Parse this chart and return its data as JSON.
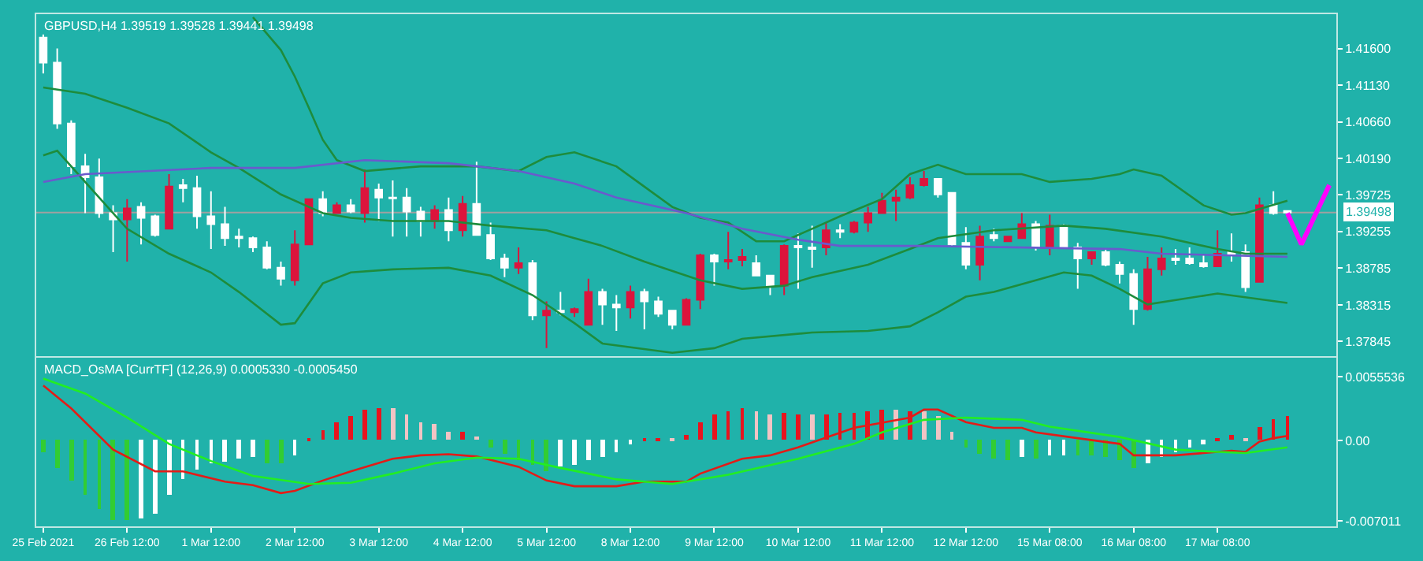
{
  "chart_data": [
    {
      "type": "candlestick",
      "title": "GBPUSD,H4 1.39519 1.39528 1.39441 1.39498",
      "grid": false,
      "tick_labels": "y",
      "categories": [
        null,
        null,
        null,
        null,
        null,
        null,
        null,
        null,
        null,
        null,
        null,
        null,
        null,
        null,
        null,
        null,
        null,
        null,
        null,
        null,
        null,
        null,
        null,
        null,
        null,
        null,
        null,
        null,
        null,
        null,
        null,
        null,
        null,
        null,
        null,
        null,
        null,
        null,
        null,
        null,
        null,
        null,
        null,
        null,
        null,
        null,
        null,
        null,
        null,
        null,
        null,
        null,
        null,
        null,
        null,
        null,
        null,
        null,
        null,
        null,
        null,
        null,
        null,
        null,
        null,
        null,
        null,
        null,
        null,
        null,
        null,
        null,
        null,
        null,
        null,
        null,
        null,
        null,
        null,
        null,
        null,
        null,
        null,
        null,
        null,
        null,
        null,
        null,
        null,
        null,
        null,
        null,
        null
      ],
      "ohlc": [
        [
          1.4174,
          1.4178,
          1.4128,
          1.4142
        ],
        [
          1.4142,
          1.416,
          1.4057,
          1.4064
        ],
        [
          1.4064,
          1.4068,
          1.3999,
          1.4009
        ],
        [
          1.4009,
          1.4025,
          1.3949,
          1.3995
        ],
        [
          1.3995,
          1.4019,
          1.3943,
          1.3949
        ],
        [
          1.3949,
          1.3959,
          1.3899,
          1.3941
        ],
        [
          1.3941,
          1.3967,
          1.3887,
          1.3955
        ],
        [
          1.3957,
          1.3963,
          1.3909,
          1.3943
        ],
        [
          1.3945,
          1.3947,
          1.3919,
          1.3921
        ],
        [
          1.3929,
          1.3999,
          1.3929,
          1.3983
        ],
        [
          1.3985,
          1.3993,
          1.3963,
          1.3981
        ],
        [
          1.3981,
          1.3997,
          1.3929,
          1.3945
        ],
        [
          1.3945,
          1.3977,
          1.3903,
          1.3935
        ],
        [
          1.3935,
          1.3957,
          1.3907,
          1.3917
        ],
        [
          1.3919,
          1.3929,
          1.3905,
          1.3917
        ],
        [
          1.3917,
          1.3919,
          1.3899,
          1.3905
        ],
        [
          1.3905,
          1.3913,
          1.3877,
          1.3879
        ],
        [
          1.3879,
          1.3887,
          1.3856,
          1.3865
        ],
        [
          1.3863,
          1.3927,
          1.3856,
          1.3909
        ],
        [
          1.3909,
          1.3967,
          1.3909,
          1.3967
        ],
        [
          1.3967,
          1.3977,
          1.3945,
          1.3949
        ],
        [
          1.3949,
          1.3963,
          1.3949,
          1.3959
        ],
        [
          1.3959,
          1.3967,
          1.3949,
          1.3951
        ],
        [
          1.3949,
          1.4005,
          1.3937,
          1.3981
        ],
        [
          1.3979,
          1.3987,
          1.3939,
          1.3969
        ],
        [
          1.3969,
          1.3991,
          1.3919,
          1.3968
        ],
        [
          1.3969,
          1.3981,
          1.3919,
          1.3951
        ],
        [
          1.3951,
          1.3957,
          1.3919,
          1.3939
        ],
        [
          1.3939,
          1.3959,
          1.3929,
          1.3953
        ],
        [
          1.3953,
          1.3969,
          1.3913,
          1.3927
        ],
        [
          1.3927,
          1.3971,
          1.3919,
          1.3961
        ],
        [
          1.3961,
          1.4015,
          1.3921,
          1.3921
        ],
        [
          1.3921,
          1.3937,
          1.3889,
          1.3891
        ],
        [
          1.3891,
          1.3897,
          1.3867,
          1.3879
        ],
        [
          1.3879,
          1.3905,
          1.3871,
          1.3885
        ],
        [
          1.3885,
          1.3889,
          1.3812,
          1.3818
        ],
        [
          1.3818,
          1.3836,
          1.3776,
          1.3824
        ],
        [
          1.3824,
          1.3848,
          1.3818,
          1.3822
        ],
        [
          1.3822,
          1.3828,
          1.3816,
          1.3826
        ],
        [
          1.3806,
          1.3865,
          1.3806,
          1.3848
        ],
        [
          1.3848,
          1.3852,
          1.3806,
          1.3832
        ],
        [
          1.3832,
          1.3844,
          1.3798,
          1.3828
        ],
        [
          1.3828,
          1.3856,
          1.3814,
          1.3848
        ],
        [
          1.3848,
          1.3852,
          1.38,
          1.3836
        ],
        [
          1.3836,
          1.3842,
          1.3816,
          1.382
        ],
        [
          1.3824,
          1.3824,
          1.38,
          1.3806
        ],
        [
          1.3806,
          1.384,
          1.3806,
          1.3838
        ],
        [
          1.3838,
          1.3897,
          1.3826,
          1.3895
        ],
        [
          1.3895,
          1.3897,
          1.3856,
          1.3887
        ],
        [
          1.3887,
          1.3925,
          1.3877,
          1.3889
        ],
        [
          1.3889,
          1.3903,
          1.3881,
          1.3893
        ],
        [
          1.3885,
          1.3895,
          1.3869,
          1.3869
        ],
        [
          1.3869,
          1.3869,
          1.3844,
          1.3856
        ],
        [
          1.3856,
          1.3909,
          1.3844,
          1.3907
        ],
        [
          1.3907,
          1.3923,
          1.3852,
          1.3905
        ],
        [
          1.3905,
          1.3933,
          1.3879,
          1.3903
        ],
        [
          1.3905,
          1.3937,
          1.3895,
          1.3927
        ],
        [
          1.3927,
          1.3935,
          1.3917,
          1.3925
        ],
        [
          1.3925,
          1.3939,
          1.3923,
          1.3937
        ],
        [
          1.3937,
          1.3957,
          1.3925,
          1.3949
        ],
        [
          1.3949,
          1.3975,
          1.3949,
          1.3965
        ],
        [
          1.3965,
          1.3979,
          1.3939,
          1.3969
        ],
        [
          1.3969,
          1.3995,
          1.3967,
          1.3985
        ],
        [
          1.3985,
          1.4003,
          1.3983,
          1.3993
        ],
        [
          1.3993,
          1.3993,
          1.3969,
          1.3973
        ],
        [
          1.3975,
          1.3975,
          1.3905,
          1.3909
        ],
        [
          1.3911,
          1.3931,
          1.3877,
          1.3883
        ],
        [
          1.3883,
          1.3933,
          1.3863,
          1.3919
        ],
        [
          1.3921,
          1.3929,
          1.3913,
          1.3917
        ],
        [
          1.3913,
          1.3919,
          1.3913,
          1.3919
        ],
        [
          1.3917,
          1.3949,
          1.3917,
          1.3935
        ],
        [
          1.3935,
          1.3939,
          1.3901,
          1.3905
        ],
        [
          1.3905,
          1.3947,
          1.3895,
          1.3933
        ],
        [
          1.3933,
          1.3935,
          1.3905,
          1.3905
        ],
        [
          1.3905,
          1.3911,
          1.3852,
          1.3891
        ],
        [
          1.3891,
          1.3899,
          1.3883,
          1.3899
        ],
        [
          1.3899,
          1.3903,
          1.3881,
          1.3883
        ],
        [
          1.3883,
          1.3887,
          1.3859,
          1.3871
        ],
        [
          1.3871,
          1.3877,
          1.3806,
          1.3826
        ],
        [
          1.3826,
          1.3893,
          1.3824,
          1.3877
        ],
        [
          1.3877,
          1.3905,
          1.3869,
          1.3891
        ],
        [
          1.3891,
          1.3903,
          1.3883,
          1.3889
        ],
        [
          1.3891,
          1.3905,
          1.3883,
          1.3885
        ],
        [
          1.3885,
          1.3895,
          1.3879,
          1.3881
        ],
        [
          1.3881,
          1.3927,
          1.3881,
          1.3897
        ],
        [
          1.3899,
          1.3923,
          1.3887,
          1.3897
        ],
        [
          1.3899,
          1.3909,
          1.3848,
          1.3854
        ],
        [
          1.3861,
          1.3969,
          1.3861,
          1.3959
        ],
        [
          1.3959,
          1.3977,
          1.3947,
          1.3949
        ],
        [
          1.39519,
          1.39528,
          1.39441,
          1.39498
        ],
        null,
        null,
        null
      ],
      "colors": [
        "#ffffff",
        "#ffffff",
        "#ffffff",
        "#ffffff",
        "#ffffff",
        "#ffffff",
        "#dc143c",
        "#ffffff",
        "#ffffff",
        "#dc143c",
        "#ffffff",
        "#ffffff",
        "#ffffff",
        "#ffffff",
        "#ffffff",
        "#ffffff",
        "#ffffff",
        "#ffffff",
        "#dc143c",
        "#dc143c",
        "#ffffff",
        "#dc143c",
        "#ffffff",
        "#dc143c",
        "#ffffff",
        "#ffffff",
        "#ffffff",
        "#ffffff",
        "#dc143c",
        "#ffffff",
        "#dc143c",
        "#ffffff",
        "#ffffff",
        "#ffffff",
        "#dc143c",
        "#ffffff",
        "#dc143c",
        "#ffffff",
        "#dc143c",
        "#dc143c",
        "#ffffff",
        "#ffffff",
        "#dc143c",
        "#ffffff",
        "#ffffff",
        "#ffffff",
        "#dc143c",
        "#dc143c",
        "#ffffff",
        "#dc143c",
        "#dc143c",
        "#ffffff",
        "#ffffff",
        "#dc143c",
        "#ffffff",
        "#ffffff",
        "#dc143c",
        "#ffffff",
        "#dc143c",
        "#dc143c",
        "#dc143c",
        "#dc143c",
        "#dc143c",
        "#dc143c",
        "#ffffff",
        "#ffffff",
        "#ffffff",
        "#dc143c",
        "#ffffff",
        "#dc143c",
        "#dc143c",
        "#ffffff",
        "#dc143c",
        "#ffffff",
        "#ffffff",
        "#dc143c",
        "#ffffff",
        "#ffffff",
        "#ffffff",
        "#dc143c",
        "#dc143c",
        "#ffffff",
        "#ffffff",
        "#ffffff",
        "#dc143c",
        "#ffffff",
        "#ffffff",
        "#dc143c",
        "#ffffff",
        "#ffffff",
        null,
        null,
        null
      ],
      "series": [
        {
          "type": "line",
          "color": "#1e8c3c",
          "values": [
            null,
            null,
            null,
            null,
            null,
            null,
            null,
            null,
            null,
            null,
            null,
            null,
            null,
            null,
            null,
            1.42,
            null,
            1.4158,
            1.4124,
            1.4084,
            1.4043,
            1.4017,
            null,
            1.4003,
            null,
            null,
            null,
            1.4009,
            null,
            null,
            null,
            1.4009,
            null,
            null,
            1.4003,
            null,
            1.4021,
            null,
            1.4027,
            null,
            null,
            1.4009,
            null,
            1.3983,
            null,
            1.3957,
            null,
            1.3943,
            null,
            1.3937,
            null,
            1.3913,
            null,
            1.3913,
            null,
            1.3929,
            null,
            1.3945,
            null,
            null,
            1.3967,
            null,
            1.3999,
            null,
            1.4011,
            null,
            1.3999,
            null,
            null,
            null,
            1.3999,
            null,
            1.3989,
            null,
            null,
            1.3993,
            null,
            1.3999,
            1.4005,
            null,
            1.3997,
            null,
            null,
            1.3959,
            null,
            1.3947,
            1.3949,
            null,
            null,
            1.3965,
            null,
            null,
            null
          ]
        },
        {
          "type": "line",
          "color": "#1e8c3c",
          "values": [
            1.411,
            null,
            null,
            1.4102,
            null,
            null,
            1.4084,
            null,
            null,
            1.4064,
            null,
            null,
            1.4027,
            null,
            1.4007,
            null,
            null,
            1.3973,
            null,
            null,
            1.3949,
            null,
            1.3943,
            null,
            null,
            1.3939,
            null,
            null,
            null,
            1.3939,
            null,
            null,
            1.3933,
            null,
            null,
            null,
            1.3927,
            null,
            1.3917,
            null,
            1.3907,
            null,
            null,
            1.3887,
            null,
            null,
            null,
            1.3863,
            null,
            null,
            1.3852,
            null,
            null,
            1.3856,
            null,
            1.3867,
            null,
            null,
            null,
            1.3883,
            null,
            null,
            1.3903,
            null,
            1.3917,
            null,
            null,
            null,
            1.3927,
            null,
            null,
            null,
            null,
            1.3933,
            null,
            null,
            1.3929,
            null,
            null,
            null,
            1.3919,
            null,
            null,
            null,
            1.3903,
            null,
            1.3897,
            null,
            null,
            1.3897,
            null,
            null,
            null
          ]
        },
        {
          "type": "line",
          "color": "#1e8c3c",
          "values": [
            1.4023,
            1.4029,
            null,
            null,
            null,
            null,
            1.3929,
            null,
            null,
            1.3897,
            null,
            null,
            1.3873,
            null,
            1.3848,
            null,
            null,
            1.3806,
            1.3808,
            null,
            1.3859,
            null,
            1.3873,
            null,
            null,
            1.3877,
            null,
            null,
            null,
            1.3879,
            null,
            null,
            1.3869,
            null,
            null,
            1.3844,
            null,
            null,
            1.3808,
            null,
            1.3782,
            null,
            null,
            null,
            null,
            1.377,
            null,
            null,
            1.3776,
            null,
            1.3788,
            null,
            null,
            null,
            null,
            1.3796,
            null,
            null,
            null,
            1.3798,
            null,
            null,
            1.3804,
            null,
            1.3822,
            null,
            1.3842,
            null,
            1.3848,
            null,
            null,
            1.3863,
            null,
            1.3873,
            null,
            1.3869,
            null,
            1.3852,
            null,
            1.3832,
            null,
            null,
            null,
            null,
            1.3846,
            null,
            null,
            null,
            null,
            1.3834,
            null,
            null,
            null
          ]
        },
        {
          "type": "line",
          "color": "#6a5acd",
          "values": [
            1.3989,
            null,
            null,
            1.3999,
            null,
            null,
            null,
            null,
            null,
            null,
            null,
            null,
            1.4007,
            null,
            null,
            null,
            null,
            null,
            1.4007,
            null,
            null,
            null,
            null,
            1.4017,
            null,
            null,
            null,
            null,
            null,
            1.4013,
            null,
            null,
            null,
            null,
            1.4003,
            null,
            null,
            null,
            1.3987,
            null,
            null,
            1.3969,
            null,
            null,
            null,
            null,
            1.3949,
            null,
            null,
            null,
            1.3929,
            null,
            null,
            null,
            1.3915,
            null,
            null,
            1.3907,
            null,
            null,
            null,
            null,
            null,
            1.3907,
            null,
            null,
            null,
            null,
            null,
            null,
            null,
            null,
            null,
            null,
            null,
            null,
            null,
            1.3903,
            null,
            null,
            1.3897,
            null,
            null,
            null,
            null,
            null,
            null,
            null,
            null,
            1.3893,
            null,
            null,
            null
          ]
        },
        {
          "type": "line",
          "color": "#ff00ff",
          "values": [
            null,
            null,
            null,
            null,
            null,
            null,
            null,
            null,
            null,
            null,
            null,
            null,
            null,
            null,
            null,
            null,
            null,
            null,
            null,
            null,
            null,
            null,
            null,
            null,
            null,
            null,
            null,
            null,
            null,
            null,
            null,
            null,
            null,
            null,
            null,
            null,
            null,
            null,
            null,
            null,
            null,
            null,
            null,
            null,
            null,
            null,
            null,
            null,
            null,
            null,
            null,
            null,
            null,
            null,
            null,
            null,
            null,
            null,
            null,
            null,
            null,
            null,
            null,
            null,
            null,
            null,
            null,
            null,
            null,
            null,
            null,
            null,
            null,
            null,
            null,
            null,
            null,
            null,
            null,
            null,
            null,
            null,
            null,
            null,
            null,
            null,
            null,
            null,
            null,
            1.3949,
            1.3909,
            null,
            1.3985
          ]
        }
      ],
      "ref_lines": [
        {
          "axis": "y",
          "value": 1.39498,
          "label": "1.39498",
          "color": "#a0a0a0"
        }
      ],
      "ylim": [
        1.3766,
        1.4204
      ],
      "yticks": [
        {
          "value": 1.416,
          "label": "1.41600"
        },
        {
          "value": 1.4113,
          "label": "1.41130"
        },
        {
          "value": 1.4066,
          "label": "1.40660"
        },
        {
          "value": 1.4019,
          "label": "1.40190"
        },
        {
          "value": 1.39725,
          "label": "1.39725"
        },
        {
          "value": 1.39255,
          "label": "1.39255"
        },
        {
          "value": 1.38785,
          "label": "1.38785"
        },
        {
          "value": 1.38315,
          "label": "1.38315"
        },
        {
          "value": 1.37845,
          "label": "1.37845"
        }
      ]
    },
    {
      "type": "bar",
      "title": "MACD_OsMA [CurrTF] (12,26,9) 0.0005330 -0.0005450",
      "grid": false,
      "categories": [
        "25 Feb 2021",
        null,
        null,
        null,
        null,
        null,
        "26 Feb 12:00",
        null,
        null,
        null,
        null,
        null,
        "1 Mar 12:00",
        null,
        null,
        null,
        null,
        null,
        "2 Mar 12:00",
        null,
        null,
        null,
        null,
        null,
        "3 Mar 12:00",
        null,
        null,
        null,
        null,
        null,
        "4 Mar 12:00",
        null,
        null,
        null,
        null,
        null,
        "5 Mar 12:00",
        null,
        null,
        null,
        null,
        null,
        "8 Mar 12:00",
        null,
        null,
        null,
        null,
        null,
        "9 Mar 12:00",
        null,
        null,
        null,
        null,
        null,
        "10 Mar 12:00",
        null,
        null,
        null,
        null,
        null,
        "11 Mar 12:00",
        null,
        null,
        null,
        null,
        null,
        "12 Mar 12:00",
        null,
        null,
        null,
        null,
        null,
        "15 Mar 08:00",
        null,
        null,
        null,
        null,
        null,
        "16 Mar 08:00",
        null,
        null,
        null,
        null,
        null,
        "17 Mar 08:00",
        null,
        null,
        null,
        null,
        null,
        null,
        null,
        null
      ],
      "values": [
        -0.001,
        -0.0024,
        -0.0036,
        -0.0048,
        -0.006,
        -0.007,
        -0.007,
        -0.0068,
        -0.0064,
        -0.0048,
        -0.0034,
        -0.0026,
        -0.002,
        -0.0019,
        -0.0016,
        -0.0015,
        -0.002,
        -0.002,
        -0.0014,
        0.0001,
        0.0009,
        0.0016,
        0.0021,
        0.0027,
        0.0028,
        0.0028,
        0.0023,
        0.0016,
        0.0014,
        0.0008,
        0.0008,
        0.0003,
        -0.0006,
        -0.0012,
        -0.0017,
        -0.0022,
        -0.0027,
        -0.0023,
        -0.0022,
        -0.0018,
        -0.0015,
        -0.0011,
        -0.0003,
        0.0002,
        0.0002,
        0.0001,
        0.0005,
        0.0016,
        0.0022,
        0.0025,
        0.0028,
        0.0025,
        0.0022,
        0.0024,
        0.0023,
        0.0022,
        0.0023,
        0.0024,
        0.0024,
        0.0025,
        0.0026,
        0.0026,
        0.0025,
        0.0025,
        0.0021,
        0.0008,
        -0.0006,
        -0.0012,
        -0.0016,
        -0.0017,
        -0.0015,
        -0.0016,
        -0.0013,
        -0.0013,
        -0.0013,
        -0.0014,
        -0.0015,
        -0.0017,
        -0.0024,
        -0.002,
        -0.0015,
        -0.001,
        -0.0006,
        -0.0003,
        0.0002,
        0.0005,
        0.0001,
        0.0012,
        0.0019,
        0.0021,
        null,
        null,
        null
      ],
      "colors": [
        "#32cd32",
        "#32cd32",
        "#32cd32",
        "#32cd32",
        "#32cd32",
        "#32cd32",
        "#32cd32",
        "#ffffff",
        "#ffffff",
        "#ffffff",
        "#ffffff",
        "#ffffff",
        "#ffffff",
        "#ffffff",
        "#ffffff",
        "#ffffff",
        "#32cd32",
        "#32cd32",
        "#ffffff",
        "#e8141e",
        "#e8141e",
        "#e8141e",
        "#e8141e",
        "#e8141e",
        "#e8141e",
        "#f2c4c4",
        "#f2c4c4",
        "#f2c4c4",
        "#f2c4c4",
        "#f2c4c4",
        "#e8141e",
        "#f2c4c4",
        "#32cd32",
        "#32cd32",
        "#32cd32",
        "#32cd32",
        "#32cd32",
        "#ffffff",
        "#ffffff",
        "#ffffff",
        "#ffffff",
        "#ffffff",
        "#ffffff",
        "#e8141e",
        "#e8141e",
        "#f2c4c4",
        "#e8141e",
        "#e8141e",
        "#e8141e",
        "#e8141e",
        "#e8141e",
        "#f2c4c4",
        "#f2c4c4",
        "#e8141e",
        "#e8141e",
        "#f2c4c4",
        "#e8141e",
        "#e8141e",
        "#e8141e",
        "#e8141e",
        "#e8141e",
        "#f2c4c4",
        "#e8141e",
        "#f2c4c4",
        "#f2c4c4",
        "#f2c4c4",
        "#32cd32",
        "#32cd32",
        "#32cd32",
        "#32cd32",
        "#ffffff",
        "#32cd32",
        "#ffffff",
        "#ffffff",
        "#32cd32",
        "#32cd32",
        "#32cd32",
        "#32cd32",
        "#32cd32",
        "#ffffff",
        "#ffffff",
        "#ffffff",
        "#ffffff",
        "#ffffff",
        "#e8141e",
        "#e8141e",
        "#f2c4c4",
        "#e8141e",
        "#e8141e",
        "#e8141e",
        null,
        null,
        null
      ],
      "series": [
        {
          "type": "line",
          "color": "#e41b17",
          "values": [
            0.0048,
            null,
            0.0028,
            null,
            null,
            -0.0008,
            null,
            null,
            -0.0027,
            null,
            -0.0027,
            null,
            null,
            -0.0036,
            null,
            -0.0039,
            null,
            -0.0046,
            -0.0044,
            null,
            -0.0035,
            null,
            -0.0027,
            null,
            null,
            -0.0016,
            null,
            -0.0013,
            null,
            -0.0012,
            null,
            -0.0014,
            null,
            null,
            -0.0023,
            null,
            -0.0035,
            null,
            -0.004,
            null,
            null,
            -0.004,
            null,
            -0.0036,
            null,
            null,
            -0.0036,
            -0.0029,
            null,
            null,
            -0.0016,
            null,
            -0.0013,
            null,
            -0.0006,
            null,
            null,
            null,
            0.0011,
            null,
            null,
            null,
            0.002,
            0.0027,
            0.0027,
            null,
            0.0016,
            null,
            0.0011,
            null,
            0.0011,
            0.0007,
            null,
            null,
            0.0002,
            null,
            null,
            -0.0003,
            -0.0013,
            null,
            null,
            -0.0013,
            null,
            -0.0011,
            null,
            -0.0009,
            -0.001,
            -0.0001,
            0.0002,
            0.0004,
            null,
            null,
            null
          ]
        },
        {
          "type": "line",
          "color": "#22ee22",
          "values": [
            0.0054,
            null,
            null,
            0.0041,
            null,
            null,
            0.002,
            null,
            null,
            -0.0003,
            null,
            null,
            -0.0018,
            null,
            null,
            -0.0031,
            null,
            null,
            null,
            -0.0038,
            null,
            null,
            -0.0037,
            null,
            null,
            -0.0029,
            null,
            null,
            -0.002,
            null,
            null,
            -0.0015,
            null,
            null,
            -0.0016,
            null,
            null,
            -0.0024,
            null,
            null,
            null,
            -0.0034,
            null,
            null,
            null,
            -0.0038,
            null,
            null,
            null,
            -0.003,
            null,
            null,
            null,
            null,
            -0.0016,
            null,
            null,
            null,
            -0.0003,
            null,
            0.0007,
            null,
            null,
            0.0018,
            null,
            null,
            0.002,
            null,
            null,
            null,
            0.0018,
            null,
            0.0012,
            null,
            null,
            null,
            null,
            0.0003,
            null,
            null,
            null,
            -0.0008,
            null,
            null,
            -0.001,
            null,
            -0.0011,
            null,
            null,
            -0.0006,
            null,
            null,
            null
          ]
        }
      ],
      "ylim": [
        -0.0075,
        0.0072
      ],
      "yticks": [
        {
          "value": 0.0055536,
          "label": "0.0055536"
        },
        {
          "value": 0,
          "label": "0.00"
        },
        {
          "value": -0.007011,
          "label": "-0.007011"
        }
      ]
    }
  ]
}
